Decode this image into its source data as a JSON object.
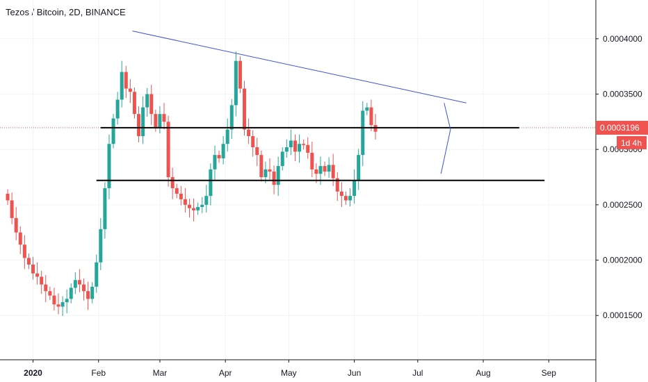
{
  "header": {
    "title": "Tezos / Bitcoin, 2D, BINANCE"
  },
  "colors": {
    "up": "#26a69a",
    "down": "#ef5350",
    "trendline": "#3f51d6",
    "level": "#000000",
    "price_line": "#ef5350",
    "grid": "#f0f3fa",
    "axis": "#131722"
  },
  "price_badge": {
    "price": "0.0003196",
    "countdown": "1d 4h"
  },
  "chart_data": {
    "type": "candlestick",
    "symbol": "Tezos / Bitcoin",
    "interval": "2D",
    "exchange": "BINANCE",
    "x_ticks": [
      "2020",
      "Feb",
      "Mar",
      "Apr",
      "May",
      "Jun",
      "Jul",
      "Aug",
      "Sep"
    ],
    "y_ticks": [
      "0.0001500",
      "0.0002000",
      "0.0002500",
      "0.0003000",
      "0.0003500",
      "0.0004000"
    ],
    "ylim": [
      0.00011,
      0.000435
    ],
    "last_price": 0.0003196,
    "countdown": "1d 4h",
    "closes": [
      0.000254,
      0.000238,
      0.000225,
      0.000214,
      0.000202,
      0.000196,
      0.000188,
      0.000185,
      0.000178,
      0.000172,
      0.000168,
      0.00016,
      0.000158,
      0.000162,
      0.000165,
      0.000175,
      0.000182,
      0.000178,
      0.000172,
      0.000165,
      0.000176,
      0.000198,
      0.000228,
      0.000265,
      0.000305,
      0.000328,
      0.000345,
      0.00037,
      0.000355,
      0.000352,
      0.000332,
      0.000312,
      0.000338,
      0.00035,
      0.000332,
      0.00032,
      0.000332,
      0.000325,
      0.000275,
      0.000265,
      0.00026,
      0.000255,
      0.00025,
      0.000247,
      0.000245,
      0.000248,
      0.00025,
      0.000258,
      0.000282,
      0.000295,
      0.000292,
      0.000305,
      0.000318,
      0.00034,
      0.00038,
      0.000355,
      0.000318,
      0.000312,
      0.000302,
      0.000295,
      0.000275,
      0.000282,
      0.00028,
      0.000268,
      0.000285,
      0.000298,
      0.000302,
      0.000308,
      0.000298,
      0.000305,
      0.000304,
      0.000297,
      0.000282,
      0.000278,
      0.000285,
      0.00028,
      0.000286,
      0.000274,
      0.000262,
      0.000258,
      0.000254,
      0.000258,
      0.000272,
      0.000295,
      0.000335,
      0.000338,
      0.000322,
      0.000316
    ],
    "trendline": {
      "start": [
        "Feb 17",
        0.000407
      ],
      "end": [
        "Jul 24",
        0.000342
      ]
    },
    "horizontal_levels": [
      0.0003196,
      0.000272
    ],
    "annotation_zigzag": [
      0.000342,
      0.000318,
      0.000278
    ]
  }
}
